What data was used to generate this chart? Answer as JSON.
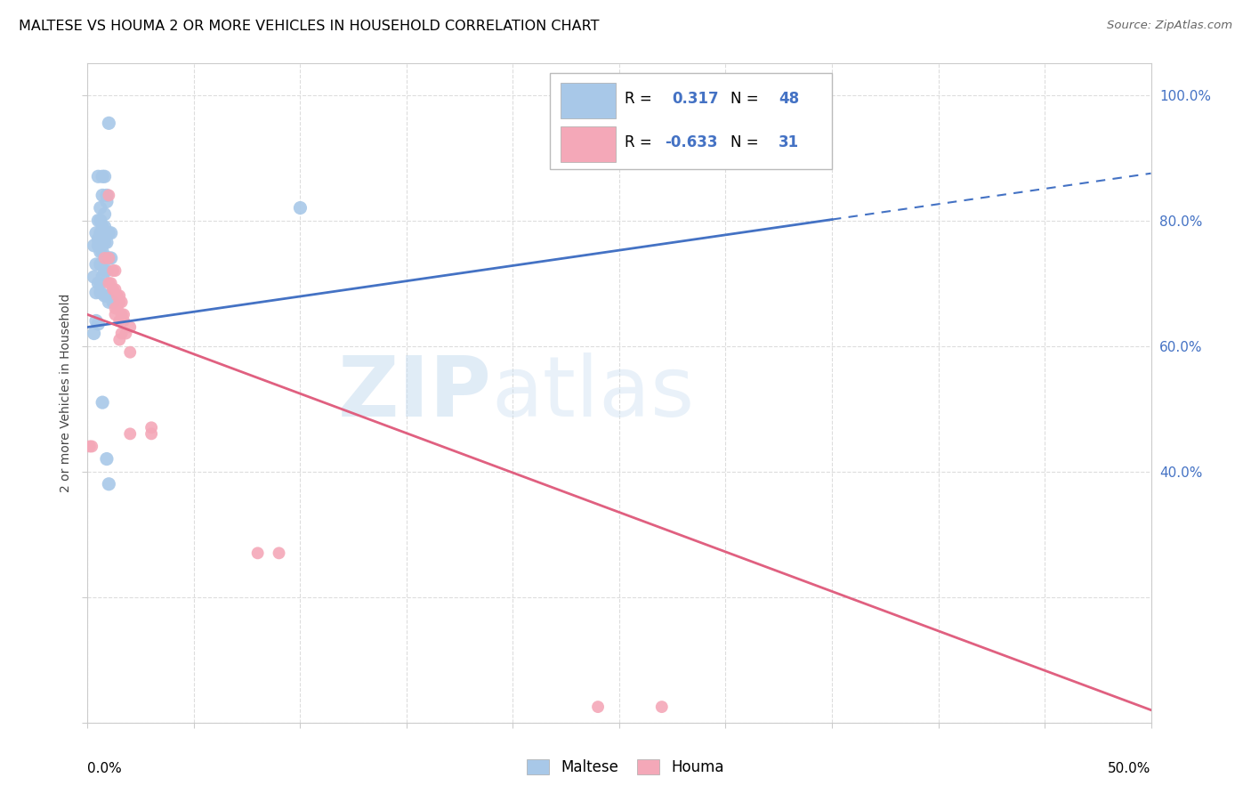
{
  "title": "MALTESE VS HOUMA 2 OR MORE VEHICLES IN HOUSEHOLD CORRELATION CHART",
  "source": "Source: ZipAtlas.com",
  "ylabel": "2 or more Vehicles in Household",
  "maltese_color": "#a8c8e8",
  "houma_color": "#f4a8b8",
  "trendline_maltese_color": "#4472c4",
  "trendline_houma_color": "#e06080",
  "watermark_zip": "ZIP",
  "watermark_atlas": "atlas",
  "maltese_scatter": [
    [
      0.01,
      0.955
    ],
    [
      0.005,
      0.87
    ],
    [
      0.007,
      0.87
    ],
    [
      0.008,
      0.87
    ],
    [
      0.007,
      0.84
    ],
    [
      0.009,
      0.84
    ],
    [
      0.009,
      0.83
    ],
    [
      0.006,
      0.82
    ],
    [
      0.008,
      0.81
    ],
    [
      0.005,
      0.8
    ],
    [
      0.006,
      0.8
    ],
    [
      0.007,
      0.79
    ],
    [
      0.008,
      0.79
    ],
    [
      0.004,
      0.78
    ],
    [
      0.006,
      0.78
    ],
    [
      0.01,
      0.78
    ],
    [
      0.011,
      0.78
    ],
    [
      0.005,
      0.77
    ],
    [
      0.007,
      0.77
    ],
    [
      0.008,
      0.765
    ],
    [
      0.009,
      0.765
    ],
    [
      0.003,
      0.76
    ],
    [
      0.005,
      0.76
    ],
    [
      0.006,
      0.75
    ],
    [
      0.007,
      0.75
    ],
    [
      0.01,
      0.74
    ],
    [
      0.011,
      0.74
    ],
    [
      0.004,
      0.73
    ],
    [
      0.006,
      0.73
    ],
    [
      0.008,
      0.72
    ],
    [
      0.009,
      0.72
    ],
    [
      0.003,
      0.71
    ],
    [
      0.007,
      0.71
    ],
    [
      0.005,
      0.7
    ],
    [
      0.006,
      0.7
    ],
    [
      0.004,
      0.685
    ],
    [
      0.006,
      0.685
    ],
    [
      0.008,
      0.68
    ],
    [
      0.009,
      0.68
    ],
    [
      0.01,
      0.67
    ],
    [
      0.012,
      0.67
    ],
    [
      0.004,
      0.64
    ],
    [
      0.005,
      0.635
    ],
    [
      0.003,
      0.62
    ],
    [
      0.007,
      0.51
    ],
    [
      0.009,
      0.42
    ],
    [
      0.01,
      0.38
    ],
    [
      0.1,
      0.82
    ]
  ],
  "houma_scatter": [
    [
      0.01,
      0.84
    ],
    [
      0.008,
      0.74
    ],
    [
      0.01,
      0.74
    ],
    [
      0.012,
      0.72
    ],
    [
      0.013,
      0.72
    ],
    [
      0.01,
      0.7
    ],
    [
      0.011,
      0.7
    ],
    [
      0.012,
      0.69
    ],
    [
      0.013,
      0.69
    ],
    [
      0.014,
      0.68
    ],
    [
      0.015,
      0.68
    ],
    [
      0.015,
      0.67
    ],
    [
      0.016,
      0.67
    ],
    [
      0.013,
      0.66
    ],
    [
      0.014,
      0.66
    ],
    [
      0.016,
      0.65
    ],
    [
      0.017,
      0.65
    ],
    [
      0.015,
      0.64
    ],
    [
      0.017,
      0.64
    ],
    [
      0.02,
      0.63
    ],
    [
      0.016,
      0.62
    ],
    [
      0.018,
      0.62
    ],
    [
      0.015,
      0.61
    ],
    [
      0.013,
      0.65
    ],
    [
      0.02,
      0.59
    ],
    [
      0.03,
      0.47
    ],
    [
      0.02,
      0.46
    ],
    [
      0.03,
      0.46
    ],
    [
      0.001,
      0.44
    ],
    [
      0.002,
      0.44
    ],
    [
      0.08,
      0.27
    ],
    [
      0.09,
      0.27
    ],
    [
      0.24,
      0.025
    ],
    [
      0.27,
      0.025
    ]
  ],
  "maltese_trend_x": [
    0.0,
    0.5
  ],
  "maltese_trend_y": [
    0.63,
    0.875
  ],
  "maltese_trend_solid_end": 0.35,
  "houma_trend_x": [
    0.0,
    0.5
  ],
  "houma_trend_y": [
    0.65,
    0.02
  ],
  "xlim": [
    0.0,
    0.5
  ],
  "ylim": [
    0.0,
    1.05
  ],
  "background_color": "#ffffff",
  "grid_color": "#dddddd"
}
